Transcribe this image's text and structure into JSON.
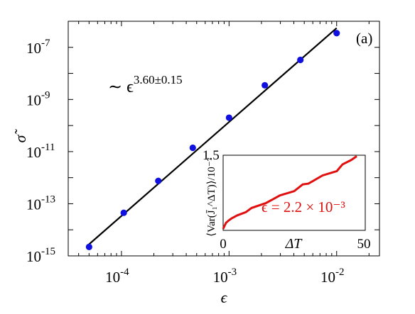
{
  "chart_data": [
    {
      "type": "scatter",
      "panel_label": "(a)",
      "xlabel": "ϵ",
      "ylabel": "σ̃",
      "x_scale": "log",
      "y_scale": "log",
      "xlim": [
        3.2e-05,
        0.025
      ],
      "ylim": [
        1e-15,
        1e-06
      ],
      "x_ticks": [
        {
          "value": 0.0001,
          "base": "10",
          "exp": "-4"
        },
        {
          "value": 0.001,
          "base": "10",
          "exp": "-3"
        },
        {
          "value": 0.01,
          "base": "10",
          "exp": "-2"
        }
      ],
      "y_ticks": [
        {
          "value": 1e-15,
          "base": "10",
          "exp": "-15"
        },
        {
          "value": 1e-13,
          "base": "10",
          "exp": "-13"
        },
        {
          "value": 1e-11,
          "base": "10",
          "exp": "-11"
        },
        {
          "value": 1e-09,
          "base": "10",
          "exp": "-9"
        },
        {
          "value": 1e-07,
          "base": "10",
          "exp": "-7"
        }
      ],
      "series": [
        {
          "type": "scatter",
          "color": "#1010e0",
          "x": [
            5e-05,
            0.000105,
            0.00022,
            0.00046,
            0.001,
            0.00215,
            0.0046,
            0.01
          ],
          "y": [
            2.2e-15,
            4.5e-14,
            7.5e-13,
            1.4e-11,
            2e-10,
            3.5e-09,
            3.3e-08,
            3.5e-07
          ]
        },
        {
          "type": "line",
          "color": "#000000",
          "x": [
            5e-05,
            0.01
          ],
          "y": [
            2.8e-15,
            5.5e-07
          ]
        }
      ],
      "annotation": {
        "prefix": "∼ ϵ",
        "exponent": "3.60±0.15"
      },
      "grid": false,
      "legend": "none"
    },
    {
      "type": "line",
      "inset": true,
      "xlabel": "ΔT",
      "ylabel": "⟨Var(J̄₁^ΔT)⟩/10⁻⁷",
      "xlim": [
        0,
        50
      ],
      "ylim": [
        0,
        1.5
      ],
      "x_ticks": [
        "0",
        "50"
      ],
      "y_ticks": [
        "1.5"
      ],
      "series": [
        {
          "color": "#e01010",
          "x": [
            0,
            1,
            2,
            3,
            5,
            8,
            10,
            15,
            20,
            25,
            28,
            30,
            35,
            40,
            42,
            45,
            47
          ],
          "y": [
            0.03,
            0.15,
            0.2,
            0.24,
            0.3,
            0.38,
            0.43,
            0.56,
            0.68,
            0.8,
            0.9,
            0.95,
            1.08,
            1.2,
            1.3,
            1.42,
            1.48
          ]
        }
      ],
      "annotation": "ϵ = 2.2 × 10⁻³"
    }
  ]
}
